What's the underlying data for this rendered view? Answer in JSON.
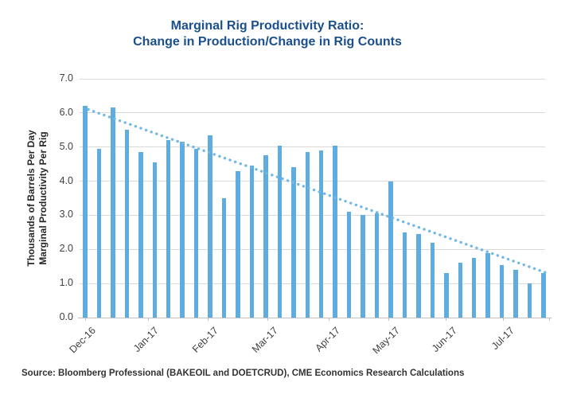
{
  "header": {
    "title_line1": "Marginal Rig Productivity Ratio:",
    "title_line2": "Change in Production/Change in Rig Counts"
  },
  "footer": {
    "source": "Source: Bloomberg Professional (BAKEOIL and DOETCRUD), CME Economics Research Calculations"
  },
  "colors": {
    "title": "#1B4F8D",
    "bar": "#5FACDF",
    "trendline": "#72B8E6",
    "gridline": "#D9D9D9",
    "axis": "#BFBFBF",
    "tick_text": "#404040"
  },
  "chart_data": {
    "type": "bar",
    "title": "Marginal Rig Productivity Ratio: Change in Production/Change in Rig Counts",
    "ylabel_line1": "Thousands of Barrels Per Day",
    "ylabel_line2": "Marginal Productivity Per Rig",
    "xlabel": "",
    "ylim": [
      0,
      7
    ],
    "y_ticks": [
      0,
      1,
      2,
      3,
      4,
      5,
      6,
      7
    ],
    "grid": "horizontal",
    "x_unit": "weekly observations",
    "values": [
      6.2,
      4.95,
      6.15,
      5.5,
      4.85,
      4.55,
      5.2,
      5.15,
      4.95,
      5.35,
      3.5,
      4.3,
      4.45,
      4.75,
      5.05,
      4.4,
      4.85,
      4.9,
      5.05,
      3.1,
      3.0,
      3.05,
      4.0,
      2.5,
      2.45,
      2.2,
      1.3,
      1.6,
      1.75,
      1.9,
      1.55,
      1.4,
      1.0,
      1.3
    ],
    "x_tick_labels": [
      {
        "label": "Dec-16",
        "pos": 0.012
      },
      {
        "label": "Jan-17",
        "pos": 0.146
      },
      {
        "label": "Feb-17",
        "pos": 0.273
      },
      {
        "label": "Mar-17",
        "pos": 0.4
      },
      {
        "label": "Apr-17",
        "pos": 0.532
      },
      {
        "label": "May-17",
        "pos": 0.659
      },
      {
        "label": "Jun-17",
        "pos": 0.781
      },
      {
        "label": "Jul-17",
        "pos": 0.903
      }
    ],
    "extra_tick_positions": [
      1.0
    ],
    "trendline": {
      "style": "dotted",
      "start_value": 6.1,
      "end_value": 1.3
    },
    "legend": "none"
  }
}
